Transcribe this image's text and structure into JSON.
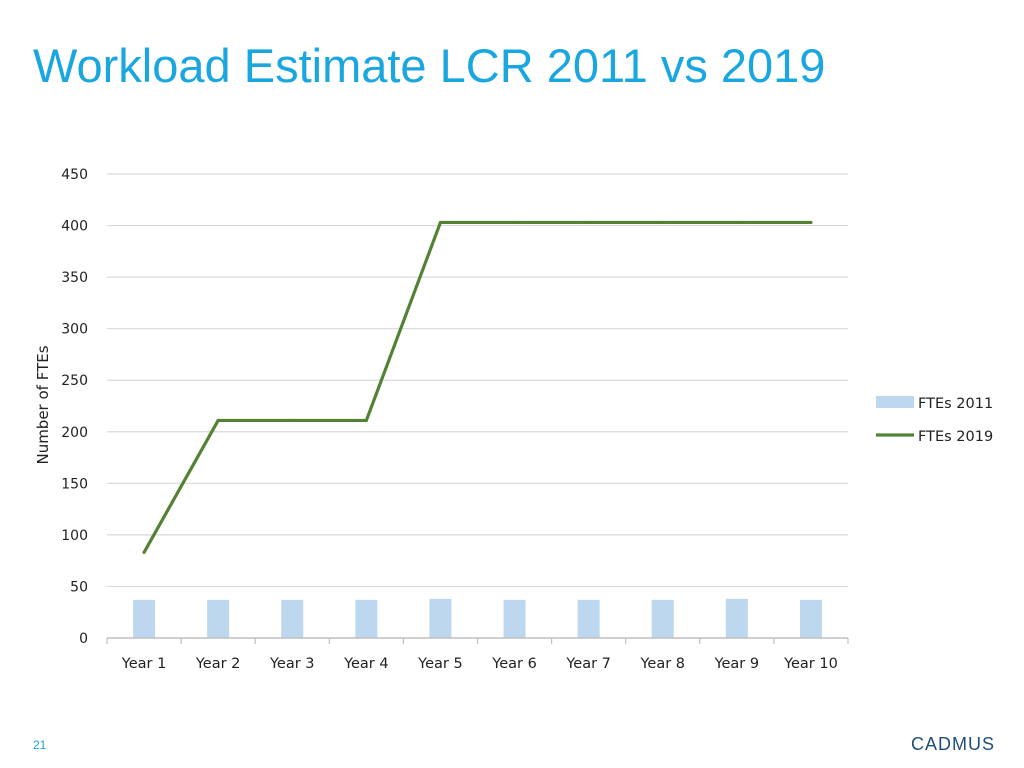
{
  "slide": {
    "title": "Workload Estimate LCR 2011 vs 2019",
    "page_number": "21",
    "brand": "CADMUS"
  },
  "colors": {
    "title": "#1aa7e0",
    "page_number": "#1aa7e0",
    "brand": "#1f4e79",
    "bar_2011": "#bdd7ee",
    "line_2019": "#548235",
    "gridline": "#d9d9d9",
    "axis": "#bfbfbf"
  },
  "chart_data": {
    "type": "bar",
    "title": "",
    "xlabel": "",
    "ylabel": "Number of FTEs",
    "categories": [
      "Year 1",
      "Year 2",
      "Year 3",
      "Year 4",
      "Year 5",
      "Year 6",
      "Year 7",
      "Year 8",
      "Year 9",
      "Year 10"
    ],
    "series": [
      {
        "name": "FTEs 2011",
        "type": "bar",
        "values": [
          37,
          37,
          37,
          37,
          38,
          37,
          37,
          37,
          38,
          37
        ]
      },
      {
        "name": "FTEs 2019",
        "type": "line",
        "values": [
          83,
          211,
          211,
          211,
          403,
          403,
          403,
          403,
          403,
          403
        ]
      }
    ],
    "ylim": [
      0,
      450
    ],
    "yticks": [
      0,
      50,
      100,
      150,
      200,
      250,
      300,
      350,
      400,
      450
    ],
    "grid": true,
    "legend_position": "right"
  }
}
